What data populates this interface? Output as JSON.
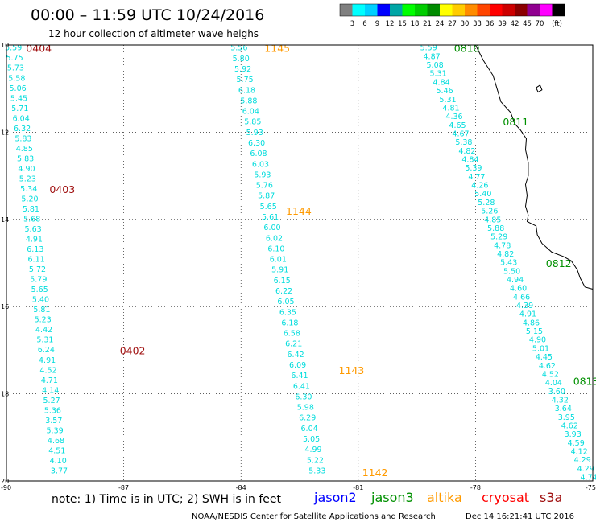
{
  "header": {
    "title": "00:00 – 11:59 UTC 10/24/2016",
    "subtitle": "12 hour collection of altimeter wave heighs"
  },
  "scale": {
    "colors": [
      "#7f7f7f",
      "#00ffff",
      "#00d0ff",
      "#0000ff",
      "#00a5a5",
      "#00ff00",
      "#00cd00",
      "#008b00",
      "#ffff00",
      "#ffcc00",
      "#ff8c00",
      "#ff4500",
      "#ff0000",
      "#cd0000",
      "#8b0000",
      "#900090",
      "#ff00ff",
      "#000000"
    ],
    "labels": [
      "3",
      "6",
      "9",
      "12",
      "15",
      "18",
      "21",
      "24",
      "27",
      "30",
      "33",
      "36",
      "39",
      "42",
      "45",
      "70",
      "(ft)"
    ]
  },
  "axes": {
    "lon_ticks": [
      "-90",
      "-87",
      "-84",
      "-81",
      "-78",
      "-75"
    ],
    "lat_ticks": [
      "10",
      "12",
      "14",
      "16",
      "18",
      "20"
    ],
    "lon_range": [
      -90,
      -75
    ],
    "lat_range": [
      10,
      20
    ]
  },
  "colors": {
    "value": "#00dcdc",
    "jason2": "#0000ff",
    "jason3": "#009000",
    "altika": "#ff9a00",
    "cryosat": "#ff0000",
    "s3a": "#a01010",
    "coast": "#000000",
    "grid": "#000000"
  },
  "tracks": [
    {
      "satellite": "s3a",
      "values": [
        "5.59",
        "5.75",
        "5.73",
        "5.58",
        "5.06",
        "5.45",
        "5.71",
        "6.04",
        "6.32",
        "5.83",
        "4.85",
        "5.83",
        "4.90",
        "5.23",
        "5.34",
        "5.20",
        "5.81",
        "5.68",
        "5.63",
        "4.91",
        "6.13",
        "6.11",
        "5.72",
        "5.79",
        "5.65",
        "5.40",
        "5.81",
        "5.23",
        "4.42",
        "5.31",
        "6.24",
        "4.91",
        "4.52",
        "4.71",
        "4.14",
        "5.27",
        "5.36",
        "3.57",
        "5.39",
        "4.68",
        "4.51",
        "4.10",
        "3.77"
      ],
      "start": [
        -89.82,
        10.05
      ],
      "end": [
        -88.65,
        19.75
      ],
      "times": [
        {
          "label": "0404",
          "lon": -89.5,
          "lat": 10.06
        },
        {
          "label": "0403",
          "lon": -88.9,
          "lat": 13.3
        },
        {
          "label": "0402",
          "lon": -87.1,
          "lat": 17.0
        }
      ]
    },
    {
      "satellite": "altika",
      "values": [
        "5.56",
        "5.80",
        "5.92",
        "5.75",
        "6.18",
        "5.88",
        "6.04",
        "5.85",
        "5.93",
        "6.30",
        "6.08",
        "6.03",
        "5.93",
        "5.76",
        "5.87",
        "5.65",
        "5.61",
        "6.00",
        "6.02",
        "6.10",
        "6.01",
        "5.91",
        "6.15",
        "6.22",
        "6.05",
        "6.35",
        "6.18",
        "6.58",
        "6.21",
        "6.42",
        "6.09",
        "6.41",
        "6.41",
        "6.30",
        "5.98",
        "6.29",
        "6.04",
        "5.05",
        "4.99",
        "5.22",
        "5.33"
      ],
      "start": [
        -84.05,
        10.05
      ],
      "end": [
        -82.05,
        19.75
      ],
      "times": [
        {
          "label": "1145",
          "lon": -83.4,
          "lat": 10.06
        },
        {
          "label": "1144",
          "lon": -82.85,
          "lat": 13.8
        },
        {
          "label": "1143",
          "lon": -81.5,
          "lat": 17.45
        },
        {
          "label": "1142",
          "lon": -80.9,
          "lat": 19.8
        }
      ]
    },
    {
      "satellite": "jason3",
      "values": [
        "5.59",
        "4.87",
        "5.08",
        "5.31",
        "4.84",
        "5.46",
        "5.31",
        "4.81",
        "4.36",
        "4.65",
        "4.67",
        "5.38",
        "4.82",
        "4.84",
        "5.39",
        "4.77",
        "4.26",
        "5.40",
        "5.28",
        "5.26",
        "4.85",
        "5.88",
        "5.29",
        "4.78",
        "4.82",
        "5.43",
        "5.50",
        "4.94",
        "4.60",
        "4.66",
        "4.39",
        "4.91",
        "4.86",
        "5.15",
        "4.90",
        "5.01",
        "4.45",
        "4.62",
        "4.52",
        "4.04",
        "3.60",
        "4.32",
        "3.64",
        "3.95",
        "4.62",
        "3.93",
        "4.59",
        "4.12",
        "4.29",
        "4.29",
        "4.74"
      ],
      "start": [
        -79.2,
        10.05
      ],
      "end": [
        -75.1,
        19.9
      ],
      "times": [
        {
          "label": "0810",
          "lon": -78.55,
          "lat": 10.06
        },
        {
          "label": "0811",
          "lon": -77.3,
          "lat": 11.75
        },
        {
          "label": "0812",
          "lon": -76.2,
          "lat": 15.0
        },
        {
          "label": "0813",
          "lon": -75.5,
          "lat": 17.7
        }
      ]
    }
  ],
  "coast": [
    [
      [
        -78.0,
        10.0
      ],
      [
        -77.8,
        10.35
      ],
      [
        -77.55,
        10.7
      ],
      [
        -77.45,
        11.0
      ],
      [
        -77.35,
        11.3
      ],
      [
        -77.1,
        11.55
      ],
      [
        -77.0,
        11.8
      ],
      [
        -76.85,
        11.95
      ],
      [
        -76.7,
        12.15
      ],
      [
        -76.72,
        12.4
      ],
      [
        -76.65,
        12.7
      ],
      [
        -76.65,
        13.0
      ],
      [
        -76.72,
        13.2
      ],
      [
        -76.68,
        13.45
      ],
      [
        -76.72,
        13.7
      ],
      [
        -76.65,
        13.9
      ],
      [
        -76.68,
        14.05
      ],
      [
        -76.45,
        14.15
      ],
      [
        -76.42,
        14.35
      ],
      [
        -76.3,
        14.55
      ],
      [
        -76.05,
        14.75
      ],
      [
        -75.75,
        14.85
      ],
      [
        -75.55,
        14.95
      ],
      [
        -75.4,
        15.15
      ],
      [
        -75.32,
        15.35
      ],
      [
        -75.2,
        15.55
      ],
      [
        -75.0,
        15.6
      ]
    ],
    [
      [
        -76.45,
        10.98
      ],
      [
        -76.35,
        10.92
      ],
      [
        -76.3,
        11.03
      ],
      [
        -76.4,
        11.08
      ],
      [
        -76.45,
        10.98
      ]
    ]
  ],
  "legend": {
    "note": "note:  1) Time is in UTC;  2) SWH is in feet",
    "jason2": "jason2",
    "jason3": "jason3",
    "altika": "altika",
    "cryosat": "cryosat",
    "s3a": "s3a"
  },
  "footer": {
    "credit": "NOAA/NESDIS Center for Satellite Applications and Research",
    "timestamp": "Dec 14 16:21:41 UTC 2016"
  }
}
